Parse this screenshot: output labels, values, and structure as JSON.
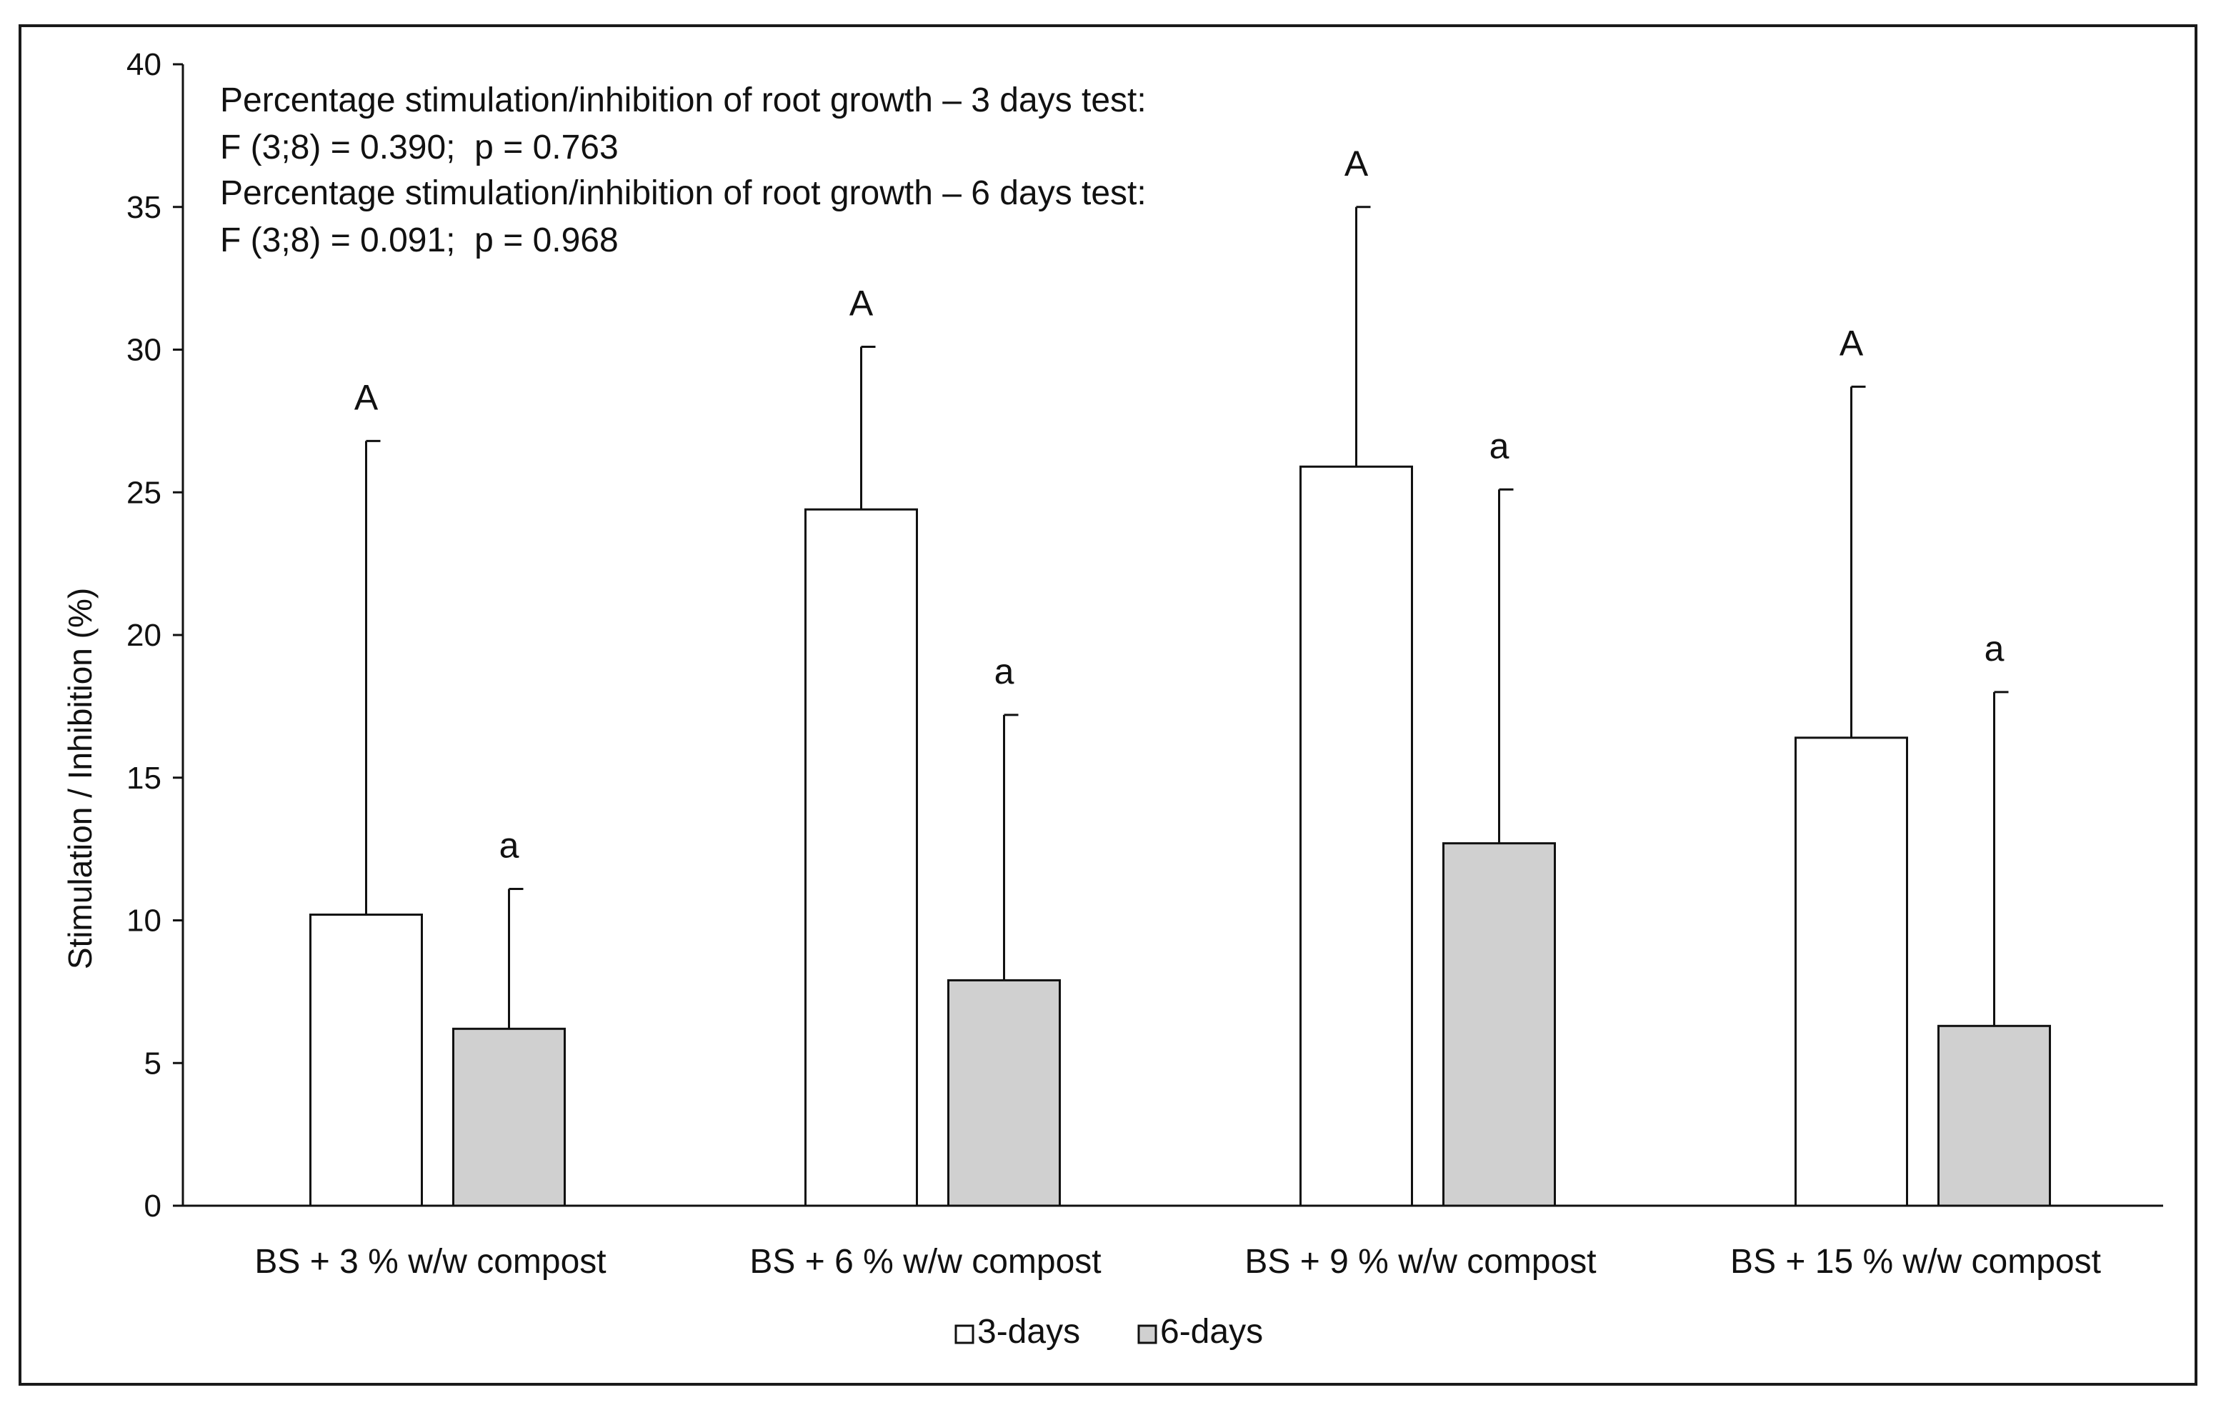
{
  "chart_data": {
    "type": "bar",
    "title": "",
    "xlabel": "",
    "ylabel": "Stimulation / Inhibition  (%)",
    "ylim": [
      0,
      40
    ],
    "yticks": [
      0,
      5,
      10,
      15,
      20,
      25,
      30,
      35,
      40
    ],
    "grid": false,
    "legend_position": "bottom-center",
    "categories": [
      "BS + 3 % w/w compost",
      "BS + 6 % w/w compost",
      "BS + 9 % w/w compost",
      "BS + 15 % w/w compost"
    ],
    "series": [
      {
        "name": "3-days",
        "color": "#ffffff",
        "values": [
          10.2,
          24.4,
          25.9,
          16.4
        ],
        "errors": [
          16.6,
          5.7,
          9.1,
          12.3
        ],
        "letters": [
          "A",
          "A",
          "A",
          "A"
        ]
      },
      {
        "name": "6-days",
        "color": "#d0d0d0",
        "values": [
          6.2,
          7.9,
          12.7,
          6.3
        ],
        "errors": [
          4.9,
          9.3,
          12.4,
          11.7
        ],
        "letters": [
          "a",
          "a",
          "a",
          "a"
        ]
      }
    ],
    "annotations": [
      "Percentage stimulation/inhibition of root growth – 3 days test:",
      "F (3;8) = 0.390;  p = 0.763",
      "Percentage stimulation/inhibition of root growth – 6 days test:",
      "F (3;8) = 0.091;  p = 0.968"
    ]
  }
}
